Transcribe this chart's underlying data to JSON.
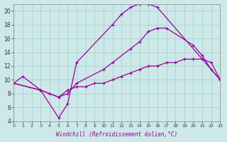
{
  "xlabel": "Windchill (Refroidissement éolien,°C)",
  "bg_color": "#cce8e8",
  "line_color": "#990099",
  "grid_color": "#aacccc",
  "xmin": 0,
  "xmax": 23,
  "ymin": 4,
  "ymax": 21,
  "series": [
    {
      "x": [
        0,
        1,
        3,
        5,
        6,
        7,
        11,
        12,
        13,
        14,
        15,
        16,
        23
      ],
      "y": [
        9.5,
        10.5,
        8.5,
        4.5,
        6.5,
        12.5,
        18.0,
        19.5,
        20.5,
        21.0,
        21.0,
        20.5,
        10.0
      ]
    },
    {
      "x": [
        0,
        3,
        5,
        6,
        7,
        10,
        11,
        13,
        14,
        15,
        16,
        17,
        20,
        21,
        22,
        23
      ],
      "y": [
        9.5,
        8.5,
        7.5,
        8.0,
        9.5,
        11.5,
        12.5,
        14.5,
        15.5,
        17.0,
        17.5,
        17.5,
        15.0,
        13.5,
        11.5,
        10.0
      ]
    },
    {
      "x": [
        0,
        3,
        4,
        5,
        6,
        7,
        8,
        9,
        10,
        11,
        12,
        13,
        14,
        15,
        16,
        17,
        18,
        19,
        20,
        21,
        22,
        23
      ],
      "y": [
        9.5,
        8.5,
        8.0,
        7.5,
        8.5,
        9.0,
        9.0,
        9.5,
        9.5,
        10.0,
        10.5,
        11.0,
        11.5,
        12.0,
        12.0,
        12.5,
        12.5,
        13.0,
        13.0,
        13.0,
        12.5,
        10.0
      ]
    }
  ]
}
